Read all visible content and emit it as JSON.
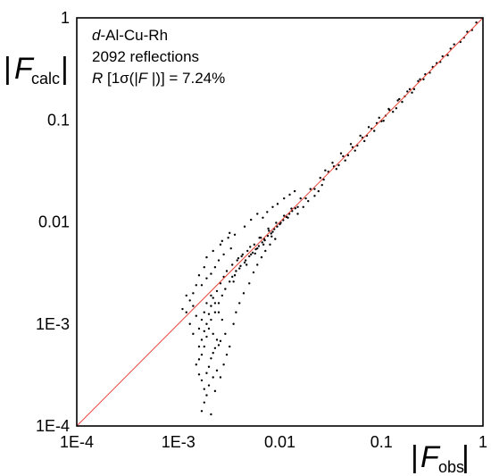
{
  "chart_data": {
    "type": "scatter",
    "title": "",
    "x_scale": "log",
    "y_scale": "log",
    "xlim": [
      0.0001,
      1
    ],
    "ylim": [
      0.0001,
      1
    ],
    "grid": false,
    "xlabel": {
      "main": "F",
      "sub": "obs"
    },
    "ylabel": {
      "main": "F",
      "sub": "calc"
    },
    "x_ticks": [
      {
        "value": 0.0001,
        "label": "1E-4"
      },
      {
        "value": 0.001,
        "label": "1E-3"
      },
      {
        "value": 0.01,
        "label": "0.01"
      },
      {
        "value": 0.1,
        "label": "0.1"
      },
      {
        "value": 1,
        "label": "1"
      }
    ],
    "y_ticks": [
      {
        "value": 0.0001,
        "label": "1E-4"
      },
      {
        "value": 0.001,
        "label": "1E-3"
      },
      {
        "value": 0.01,
        "label": "0.01"
      },
      {
        "value": 0.1,
        "label": "0.1"
      },
      {
        "value": 1,
        "label": "1"
      }
    ],
    "reference_line": {
      "from": [
        0.0001,
        0.0001
      ],
      "to": [
        1,
        1
      ],
      "color": "#e8463c"
    },
    "annotations": {
      "compound_prefix": "d",
      "compound_rest": "-Al-Cu-Rh",
      "reflections": "2092 reflections",
      "r_label": "R",
      "r_rest": " [1σ(|",
      "r_f": "F",
      "r_end": " |)] = 7.24%"
    },
    "series": [
      {
        "marker_color": "#000000",
        "points": [
          [
            0.86,
            0.9
          ],
          [
            0.78,
            0.76
          ],
          [
            0.7,
            0.73
          ],
          [
            0.6,
            0.58
          ],
          [
            0.52,
            0.55
          ],
          [
            0.45,
            0.43
          ],
          [
            0.4,
            0.42
          ],
          [
            0.35,
            0.36
          ],
          [
            0.3,
            0.29
          ],
          [
            0.27,
            0.28
          ],
          [
            0.24,
            0.25
          ],
          [
            0.21,
            0.2
          ],
          [
            0.19,
            0.2
          ],
          [
            0.17,
            0.17
          ],
          [
            0.15,
            0.16
          ],
          [
            0.14,
            0.13
          ],
          [
            0.12,
            0.125
          ],
          [
            0.11,
            0.11
          ],
          [
            0.1,
            0.097
          ],
          [
            0.09,
            0.093
          ],
          [
            0.08,
            0.082
          ],
          [
            0.072,
            0.07
          ],
          [
            0.065,
            0.067
          ],
          [
            0.058,
            0.056
          ],
          [
            0.052,
            0.054
          ],
          [
            0.047,
            0.045
          ],
          [
            0.042,
            0.044
          ],
          [
            0.038,
            0.036
          ],
          [
            0.034,
            0.035
          ],
          [
            0.03,
            0.031
          ],
          [
            0.027,
            0.026
          ],
          [
            0.025,
            0.027
          ],
          [
            0.022,
            0.021
          ],
          [
            0.02,
            0.021
          ],
          [
            0.018,
            0.017
          ],
          [
            0.016,
            0.017
          ],
          [
            0.015,
            0.014
          ],
          [
            0.013,
            0.0135
          ],
          [
            0.012,
            0.011
          ],
          [
            0.011,
            0.0115
          ],
          [
            0.01,
            0.0095
          ],
          [
            0.0092,
            0.0098
          ],
          [
            0.0085,
            0.008
          ],
          [
            0.0078,
            0.0082
          ],
          [
            0.007,
            0.0068
          ],
          [
            0.0065,
            0.007
          ],
          [
            0.006,
            0.0055
          ],
          [
            0.0056,
            0.006
          ],
          [
            0.0052,
            0.0048
          ],
          [
            0.0048,
            0.0052
          ],
          [
            0.0045,
            0.004
          ],
          [
            0.0042,
            0.0046
          ],
          [
            0.004,
            0.0035
          ],
          [
            0.0038,
            0.0042
          ],
          [
            0.0036,
            0.003
          ],
          [
            0.0034,
            0.0038
          ],
          [
            0.0032,
            0.0026
          ],
          [
            0.003,
            0.0033
          ],
          [
            0.0029,
            0.0022
          ],
          [
            0.0028,
            0.0029
          ],
          [
            0.0027,
            0.0019
          ],
          [
            0.0026,
            0.0025
          ],
          [
            0.0025,
            0.0016
          ],
          [
            0.0024,
            0.0021
          ],
          [
            0.0023,
            0.0013
          ],
          [
            0.0022,
            0.0018
          ],
          [
            0.0021,
            0.0011
          ],
          [
            0.0021,
            0.0015
          ],
          [
            0.002,
            0.0009
          ],
          [
            0.002,
            0.00125
          ],
          [
            0.0019,
            0.00075
          ],
          [
            0.0019,
            0.001
          ],
          [
            0.0018,
            0.0006
          ],
          [
            0.0018,
            0.00085
          ],
          [
            0.0017,
            0.0005
          ],
          [
            0.0017,
            0.0007
          ],
          [
            0.0016,
            0.00045
          ],
          [
            0.0016,
            0.0006
          ],
          [
            0.0015,
            0.0004
          ],
          [
            0.0015,
            0.0012
          ],
          [
            0.0014,
            0.0008
          ],
          [
            0.0014,
            0.0015
          ],
          [
            0.0013,
            0.001
          ],
          [
            0.0012,
            0.0019
          ],
          [
            0.0011,
            0.0014
          ],
          [
            0.0024,
            0.00035
          ],
          [
            0.0022,
            0.0003
          ],
          [
            0.002,
            0.00025
          ],
          [
            0.0019,
            0.0002
          ],
          [
            0.0018,
            0.00017
          ],
          [
            0.0017,
            0.00014
          ],
          [
            0.0021,
            0.00013
          ],
          [
            0.0023,
            0.00022
          ],
          [
            0.0026,
            0.0003
          ],
          [
            0.0028,
            0.0004
          ],
          [
            0.003,
            0.0005
          ],
          [
            0.0032,
            0.0006
          ],
          [
            0.0029,
            0.0008
          ],
          [
            0.0035,
            0.001
          ],
          [
            0.0037,
            0.0013
          ],
          [
            0.004,
            0.0016
          ],
          [
            0.0044,
            0.002
          ],
          [
            0.005,
            0.0025
          ],
          [
            0.0055,
            0.0032
          ],
          [
            0.006,
            0.0038
          ],
          [
            0.0066,
            0.0045
          ],
          [
            0.0072,
            0.0052
          ],
          [
            0.008,
            0.006
          ],
          [
            0.009,
            0.0068
          ],
          [
            0.0033,
            0.0055
          ],
          [
            0.0028,
            0.0048
          ],
          [
            0.0025,
            0.0042
          ],
          [
            0.0023,
            0.0036
          ],
          [
            0.0021,
            0.0031
          ],
          [
            0.0019,
            0.0028
          ],
          [
            0.0017,
            0.0024
          ],
          [
            0.0026,
            0.006
          ],
          [
            0.0031,
            0.007
          ],
          [
            0.0036,
            0.0075
          ],
          [
            0.0045,
            0.009
          ],
          [
            0.0052,
            0.0105
          ],
          [
            0.006,
            0.012
          ],
          [
            0.0068,
            0.011
          ],
          [
            0.0075,
            0.0125
          ],
          [
            0.0085,
            0.014
          ],
          [
            0.0095,
            0.015
          ],
          [
            0.011,
            0.017
          ],
          [
            0.0125,
            0.0185
          ],
          [
            0.014,
            0.02
          ],
          [
            0.015,
            0.012
          ],
          [
            0.017,
            0.014
          ],
          [
            0.019,
            0.016
          ],
          [
            0.022,
            0.018
          ],
          [
            0.024,
            0.02
          ],
          [
            0.026,
            0.023
          ],
          [
            0.028,
            0.032
          ],
          [
            0.033,
            0.038
          ],
          [
            0.036,
            0.033
          ],
          [
            0.04,
            0.047
          ],
          [
            0.044,
            0.04
          ],
          [
            0.05,
            0.058
          ],
          [
            0.055,
            0.05
          ],
          [
            0.062,
            0.07
          ],
          [
            0.068,
            0.062
          ],
          [
            0.075,
            0.085
          ],
          [
            0.085,
            0.078
          ],
          [
            0.095,
            0.105
          ],
          [
            0.105,
            0.098
          ],
          [
            0.118,
            0.128
          ],
          [
            0.13,
            0.12
          ],
          [
            0.145,
            0.155
          ],
          [
            0.16,
            0.15
          ],
          [
            0.18,
            0.19
          ],
          [
            0.2,
            0.185
          ],
          [
            0.23,
            0.24
          ],
          [
            0.26,
            0.25
          ],
          [
            0.32,
            0.33
          ],
          [
            0.38,
            0.37
          ],
          [
            0.48,
            0.5
          ],
          [
            0.65,
            0.64
          ],
          [
            0.0034,
            0.0029
          ],
          [
            0.0037,
            0.0033
          ],
          [
            0.0041,
            0.0037
          ],
          [
            0.0046,
            0.0042
          ],
          [
            0.005,
            0.0046
          ],
          [
            0.0054,
            0.005
          ],
          [
            0.0058,
            0.0054
          ],
          [
            0.0062,
            0.0058
          ],
          [
            0.0067,
            0.0063
          ],
          [
            0.0071,
            0.0066
          ],
          [
            0.0076,
            0.0073
          ],
          [
            0.0082,
            0.0077
          ],
          [
            0.0088,
            0.0085
          ],
          [
            0.0094,
            0.009
          ],
          [
            0.0102,
            0.0098
          ],
          [
            0.0108,
            0.0104
          ],
          [
            0.0116,
            0.0112
          ],
          [
            0.0124,
            0.012
          ],
          [
            0.0132,
            0.0128
          ],
          [
            0.0142,
            0.0136
          ],
          [
            0.0035,
            0.0026
          ],
          [
            0.0039,
            0.0044
          ],
          [
            0.0043,
            0.0048
          ],
          [
            0.0047,
            0.0038
          ],
          [
            0.0051,
            0.0057
          ],
          [
            0.0057,
            0.0049
          ],
          [
            0.0063,
            0.007
          ],
          [
            0.0069,
            0.006
          ],
          [
            0.0077,
            0.0086
          ],
          [
            0.0083,
            0.0072
          ],
          [
            0.0018,
            0.0036
          ],
          [
            0.0016,
            0.003
          ],
          [
            0.0015,
            0.0024
          ],
          [
            0.0014,
            0.002
          ],
          [
            0.0013,
            0.0017
          ],
          [
            0.0012,
            0.0013
          ],
          [
            0.0019,
            0.0045
          ],
          [
            0.0022,
            0.0052
          ],
          [
            0.0027,
            0.0065
          ],
          [
            0.0032,
            0.0078
          ],
          [
            0.0017,
            0.0011
          ],
          [
            0.0016,
            0.0009
          ],
          [
            0.0018,
            0.0013
          ],
          [
            0.0019,
            0.0016
          ],
          [
            0.0021,
            0.0019
          ],
          [
            0.0023,
            0.0016
          ],
          [
            0.0025,
            0.0013
          ],
          [
            0.0027,
            0.0011
          ],
          [
            0.0022,
            0.0008
          ],
          [
            0.0024,
            0.0007
          ],
          [
            0.0016,
            0.00032
          ],
          [
            0.0017,
            0.00028
          ],
          [
            0.0018,
            0.00023
          ],
          [
            0.0019,
            0.00033
          ],
          [
            0.002,
            0.00038
          ],
          [
            0.0021,
            0.00046
          ],
          [
            0.0022,
            0.00052
          ],
          [
            0.0023,
            0.00058
          ],
          [
            0.0025,
            0.00062
          ],
          [
            0.0026,
            0.00068
          ]
        ]
      }
    ]
  }
}
